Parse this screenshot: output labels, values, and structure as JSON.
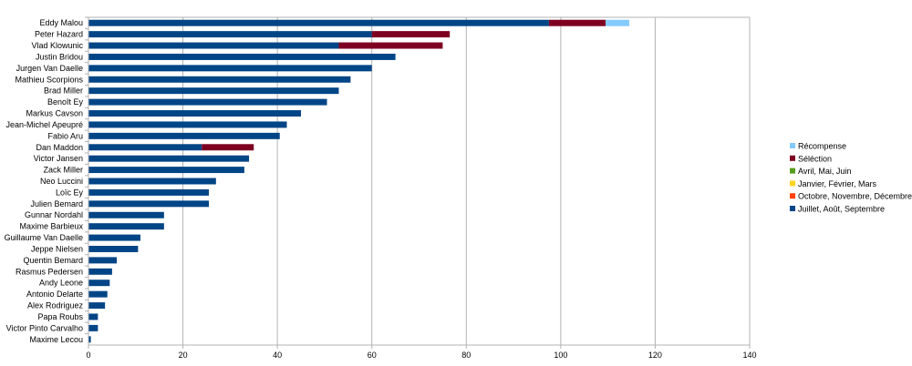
{
  "chart_data": {
    "type": "bar",
    "orientation": "horizontal",
    "stacked": true,
    "title": "",
    "xlabel": "",
    "ylabel": "",
    "xlim": [
      0,
      140
    ],
    "xticks": [
      0,
      20,
      40,
      60,
      80,
      100,
      120,
      140
    ],
    "grid": true,
    "legend_position": "right",
    "categories": [
      "Eddy Malou",
      "Peter Hazard",
      "Vlad Klowunic",
      "Justin Bridou",
      "Jurgen Van Daelle",
      "Mathieu Scorpions",
      "Brad Miller",
      "Benoît Ey",
      "Markus Cavson",
      "Jean-Michel Apeupré",
      "Fabio Aru",
      "Dan Maddon",
      "Victor Jansen",
      "Zack Miller",
      "Neo Luccini",
      "Loïc Ey",
      "Julien Bemard",
      "Gunnar Nordahl",
      "Maxime Barbieux",
      "Guillaume Van Daelle",
      "Jeppe Nielsen",
      "Quentin Bemard",
      "Rasmus Pedersen",
      "Andy Leone",
      "Antonio Delarte",
      "Alex Rodriguez",
      "Papa Roubs",
      "Victor Pinto Carvalho",
      "Maxime Lecou"
    ],
    "series": [
      {
        "name": "Juillet, Août, Septembre",
        "color": "#004586",
        "values": [
          97.5,
          60,
          53,
          65,
          60,
          55.5,
          53,
          50.5,
          45,
          42,
          40.5,
          24,
          34,
          33,
          27,
          25.5,
          25.5,
          16,
          16,
          11,
          10.5,
          6,
          5,
          4.5,
          4,
          3.5,
          2,
          2,
          0.5
        ]
      },
      {
        "name": "Octobre, Novembre, Décembre",
        "color": "#ff420e",
        "values": [
          0,
          0,
          0,
          0,
          0,
          0,
          0,
          0,
          0,
          0,
          0,
          0,
          0,
          0,
          0,
          0,
          0,
          0,
          0,
          0,
          0,
          0,
          0,
          0,
          0,
          0,
          0,
          0,
          0
        ]
      },
      {
        "name": "Janvier, Février, Mars",
        "color": "#ffd320",
        "values": [
          0,
          0,
          0,
          0,
          0,
          0,
          0,
          0,
          0,
          0,
          0,
          0,
          0,
          0,
          0,
          0,
          0,
          0,
          0,
          0,
          0,
          0,
          0,
          0,
          0,
          0,
          0,
          0,
          0
        ]
      },
      {
        "name": "Avril, Mai, Juin",
        "color": "#579d1c",
        "values": [
          0,
          0,
          0,
          0,
          0,
          0,
          0,
          0,
          0,
          0,
          0,
          0,
          0,
          0,
          0,
          0,
          0,
          0,
          0,
          0,
          0,
          0,
          0,
          0,
          0,
          0,
          0,
          0,
          0
        ]
      },
      {
        "name": "Séléction",
        "color": "#7e0021",
        "values": [
          12,
          16.5,
          22,
          0,
          0,
          0,
          0,
          0,
          0,
          0,
          0,
          11,
          0,
          0,
          0,
          0,
          0,
          0,
          0,
          0,
          0,
          0,
          0,
          0,
          0,
          0,
          0,
          0,
          0
        ]
      },
      {
        "name": "Récompense",
        "color": "#83caff",
        "values": [
          5,
          0,
          0,
          0,
          0,
          0,
          0,
          0,
          0,
          0,
          0,
          0,
          0,
          0,
          0,
          0,
          0,
          0,
          0,
          0,
          0,
          0,
          0,
          0,
          0,
          0,
          0,
          0,
          0
        ]
      }
    ]
  }
}
